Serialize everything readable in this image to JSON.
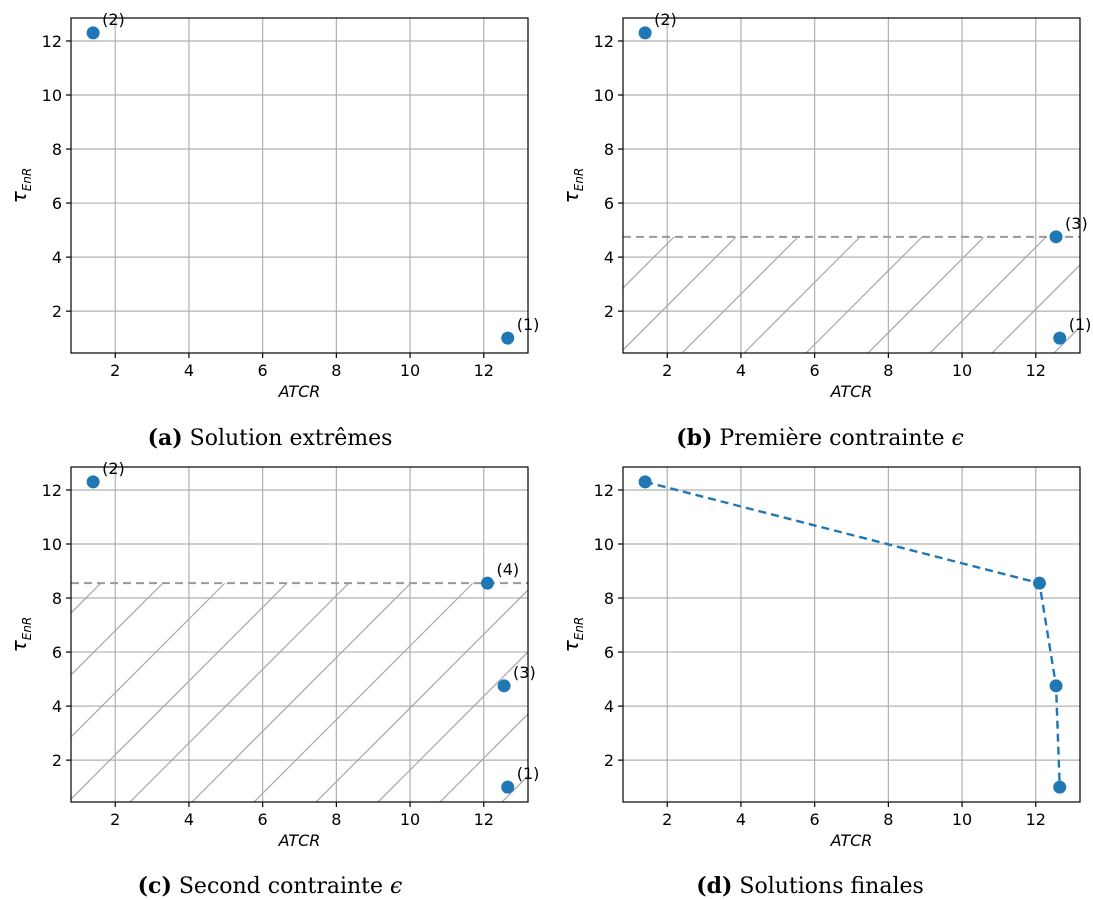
{
  "chart_data": [
    {
      "type": "scatter",
      "id": "a",
      "caption_tag": "(a)",
      "caption_text": "Solution extrêmes",
      "xlabel": "ATCR",
      "ylabel_main": "τ",
      "ylabel_sub": "EnR",
      "xlim": [
        0.8,
        13.2
      ],
      "ylim": [
        0.45,
        12.85
      ],
      "xticks": [
        2,
        4,
        6,
        8,
        10,
        12
      ],
      "yticks": [
        2,
        4,
        6,
        8,
        10,
        12
      ],
      "grid": true,
      "points": [
        {
          "x": 12.65,
          "y": 1.0,
          "label": "(1)"
        },
        {
          "x": 1.4,
          "y": 12.3,
          "label": "(2)"
        }
      ]
    },
    {
      "type": "scatter",
      "id": "b",
      "caption_tag": "(b)",
      "caption_text": "Première contrainte ",
      "caption_symbol": "ϵ",
      "xlabel": "ATCR",
      "ylabel_main": "τ",
      "ylabel_sub": "EnR",
      "xlim": [
        0.8,
        13.2
      ],
      "ylim": [
        0.45,
        12.85
      ],
      "xticks": [
        2,
        4,
        6,
        8,
        10,
        12
      ],
      "yticks": [
        2,
        4,
        6,
        8,
        10,
        12
      ],
      "grid": true,
      "constraint_y": 4.75,
      "points": [
        {
          "x": 12.65,
          "y": 1.0,
          "label": "(1)"
        },
        {
          "x": 1.4,
          "y": 12.3,
          "label": "(2)"
        },
        {
          "x": 12.55,
          "y": 4.75,
          "label": "(3)"
        }
      ]
    },
    {
      "type": "scatter",
      "id": "c",
      "caption_tag": "(c)",
      "caption_text": "Second contrainte ",
      "caption_symbol": "ϵ",
      "xlabel": "ATCR",
      "ylabel_main": "τ",
      "ylabel_sub": "EnR",
      "xlim": [
        0.8,
        13.2
      ],
      "ylim": [
        0.45,
        12.85
      ],
      "xticks": [
        2,
        4,
        6,
        8,
        10,
        12
      ],
      "yticks": [
        2,
        4,
        6,
        8,
        10,
        12
      ],
      "grid": true,
      "constraint_y": 8.55,
      "points": [
        {
          "x": 12.65,
          "y": 1.0,
          "label": "(1)"
        },
        {
          "x": 1.4,
          "y": 12.3,
          "label": "(2)"
        },
        {
          "x": 12.55,
          "y": 4.75,
          "label": "(3)"
        },
        {
          "x": 12.1,
          "y": 8.55,
          "label": "(4)"
        }
      ]
    },
    {
      "type": "line",
      "id": "d",
      "caption_tag": "(d)",
      "caption_text": "Solutions finales",
      "xlabel": "ATCR",
      "ylabel_main": "τ",
      "ylabel_sub": "EnR",
      "xlim": [
        0.8,
        13.2
      ],
      "ylim": [
        0.45,
        12.85
      ],
      "xticks": [
        2,
        4,
        6,
        8,
        10,
        12
      ],
      "yticks": [
        2,
        4,
        6,
        8,
        10,
        12
      ],
      "grid": true,
      "line_style": "dashed",
      "points": [
        {
          "x": 1.4,
          "y": 12.3
        },
        {
          "x": 12.1,
          "y": 8.55
        },
        {
          "x": 12.55,
          "y": 4.75
        },
        {
          "x": 12.65,
          "y": 1.0
        }
      ]
    }
  ],
  "colors": {
    "point": "#1f77b4",
    "grid": "#b0b0b0",
    "hatch": "#a8a8a8",
    "constraint_line": "#999999",
    "axis": "#000000"
  }
}
